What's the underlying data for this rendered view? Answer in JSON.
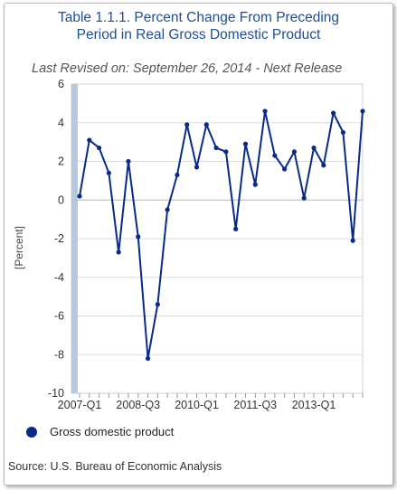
{
  "colors": {
    "title": "#1f4e96",
    "series": "#0a2a8a",
    "band": "#b7c9df",
    "grid": "#dddddd"
  },
  "chart_data": {
    "type": "line",
    "title_lines": [
      "Table 1.1.1. Percent Change From Preceding",
      "Period in Real Gross Domestic Product"
    ],
    "subtitle": "Last Revised on: September 26, 2014 - Next Release",
    "ylabel": "[Percent]",
    "ylim": [
      -10,
      6
    ],
    "yticks": [
      "6",
      "4",
      "2",
      "0",
      "-2",
      "-4",
      "-6",
      "-8",
      "-10"
    ],
    "xtick_labels": [
      "2007-Q1",
      "2008-Q3",
      "2010-Q1",
      "2011-Q3",
      "2013-Q1"
    ],
    "x": [
      "2007-Q1",
      "2007-Q2",
      "2007-Q3",
      "2007-Q4",
      "2008-Q1",
      "2008-Q2",
      "2008-Q3",
      "2008-Q4",
      "2009-Q1",
      "2009-Q2",
      "2009-Q3",
      "2009-Q4",
      "2010-Q1",
      "2010-Q2",
      "2010-Q3",
      "2010-Q4",
      "2011-Q1",
      "2011-Q2",
      "2011-Q3",
      "2011-Q4",
      "2012-Q1",
      "2012-Q2",
      "2012-Q3",
      "2012-Q4",
      "2013-Q1",
      "2013-Q2",
      "2013-Q3",
      "2013-Q4",
      "2014-Q1",
      "2014-Q2"
    ],
    "series": [
      {
        "name": "Gross domestic product",
        "values": [
          0.2,
          3.1,
          2.7,
          1.4,
          -2.7,
          2.0,
          -1.9,
          -8.2,
          -5.4,
          -0.5,
          1.3,
          3.9,
          1.7,
          3.9,
          2.7,
          2.5,
          -1.5,
          2.9,
          0.8,
          4.6,
          2.3,
          1.6,
          2.5,
          0.1,
          2.7,
          1.8,
          4.5,
          3.5,
          -2.1,
          4.6
        ]
      }
    ],
    "grid": true,
    "legend_position": "bottom-left",
    "source": "Source: U.S. Bureau of Economic Analysis"
  }
}
